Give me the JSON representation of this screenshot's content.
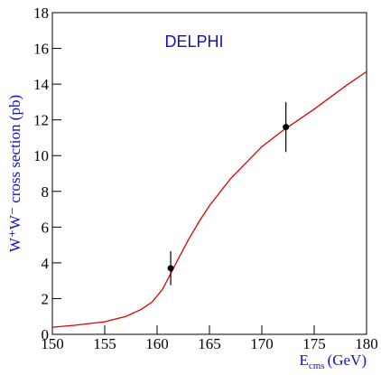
{
  "chart_data": {
    "type": "line",
    "annotation": "DELPHI",
    "y_label": "W⁺W⁻ cross section (pb)",
    "x_label": {
      "main": "E",
      "sub": "cms",
      "unit": "(GeV)"
    },
    "xlim": [
      150,
      180
    ],
    "xticks": [
      150,
      155,
      160,
      165,
      170,
      175,
      180
    ],
    "ylim": [
      0,
      18
    ],
    "yticks": [
      0,
      2,
      4,
      6,
      8,
      10,
      12,
      14,
      16,
      18
    ],
    "series": [
      {
        "type": "line",
        "color": "#e00000",
        "x": [
          150,
          152,
          155,
          157,
          158.5,
          159.5,
          160.5,
          161.3,
          162,
          163,
          164,
          165,
          167,
          170,
          172,
          175,
          178,
          180
        ],
        "values": [
          0.4,
          0.5,
          0.7,
          1.0,
          1.4,
          1.8,
          2.5,
          3.4,
          4.2,
          5.3,
          6.3,
          7.2,
          8.7,
          10.5,
          11.4,
          12.6,
          13.9,
          14.7
        ]
      },
      {
        "type": "errorbar",
        "color": "#000000",
        "x": [
          161.3,
          172.3
        ],
        "values": [
          3.7,
          11.6
        ],
        "errors": [
          0.95,
          1.4
        ]
      }
    ]
  }
}
